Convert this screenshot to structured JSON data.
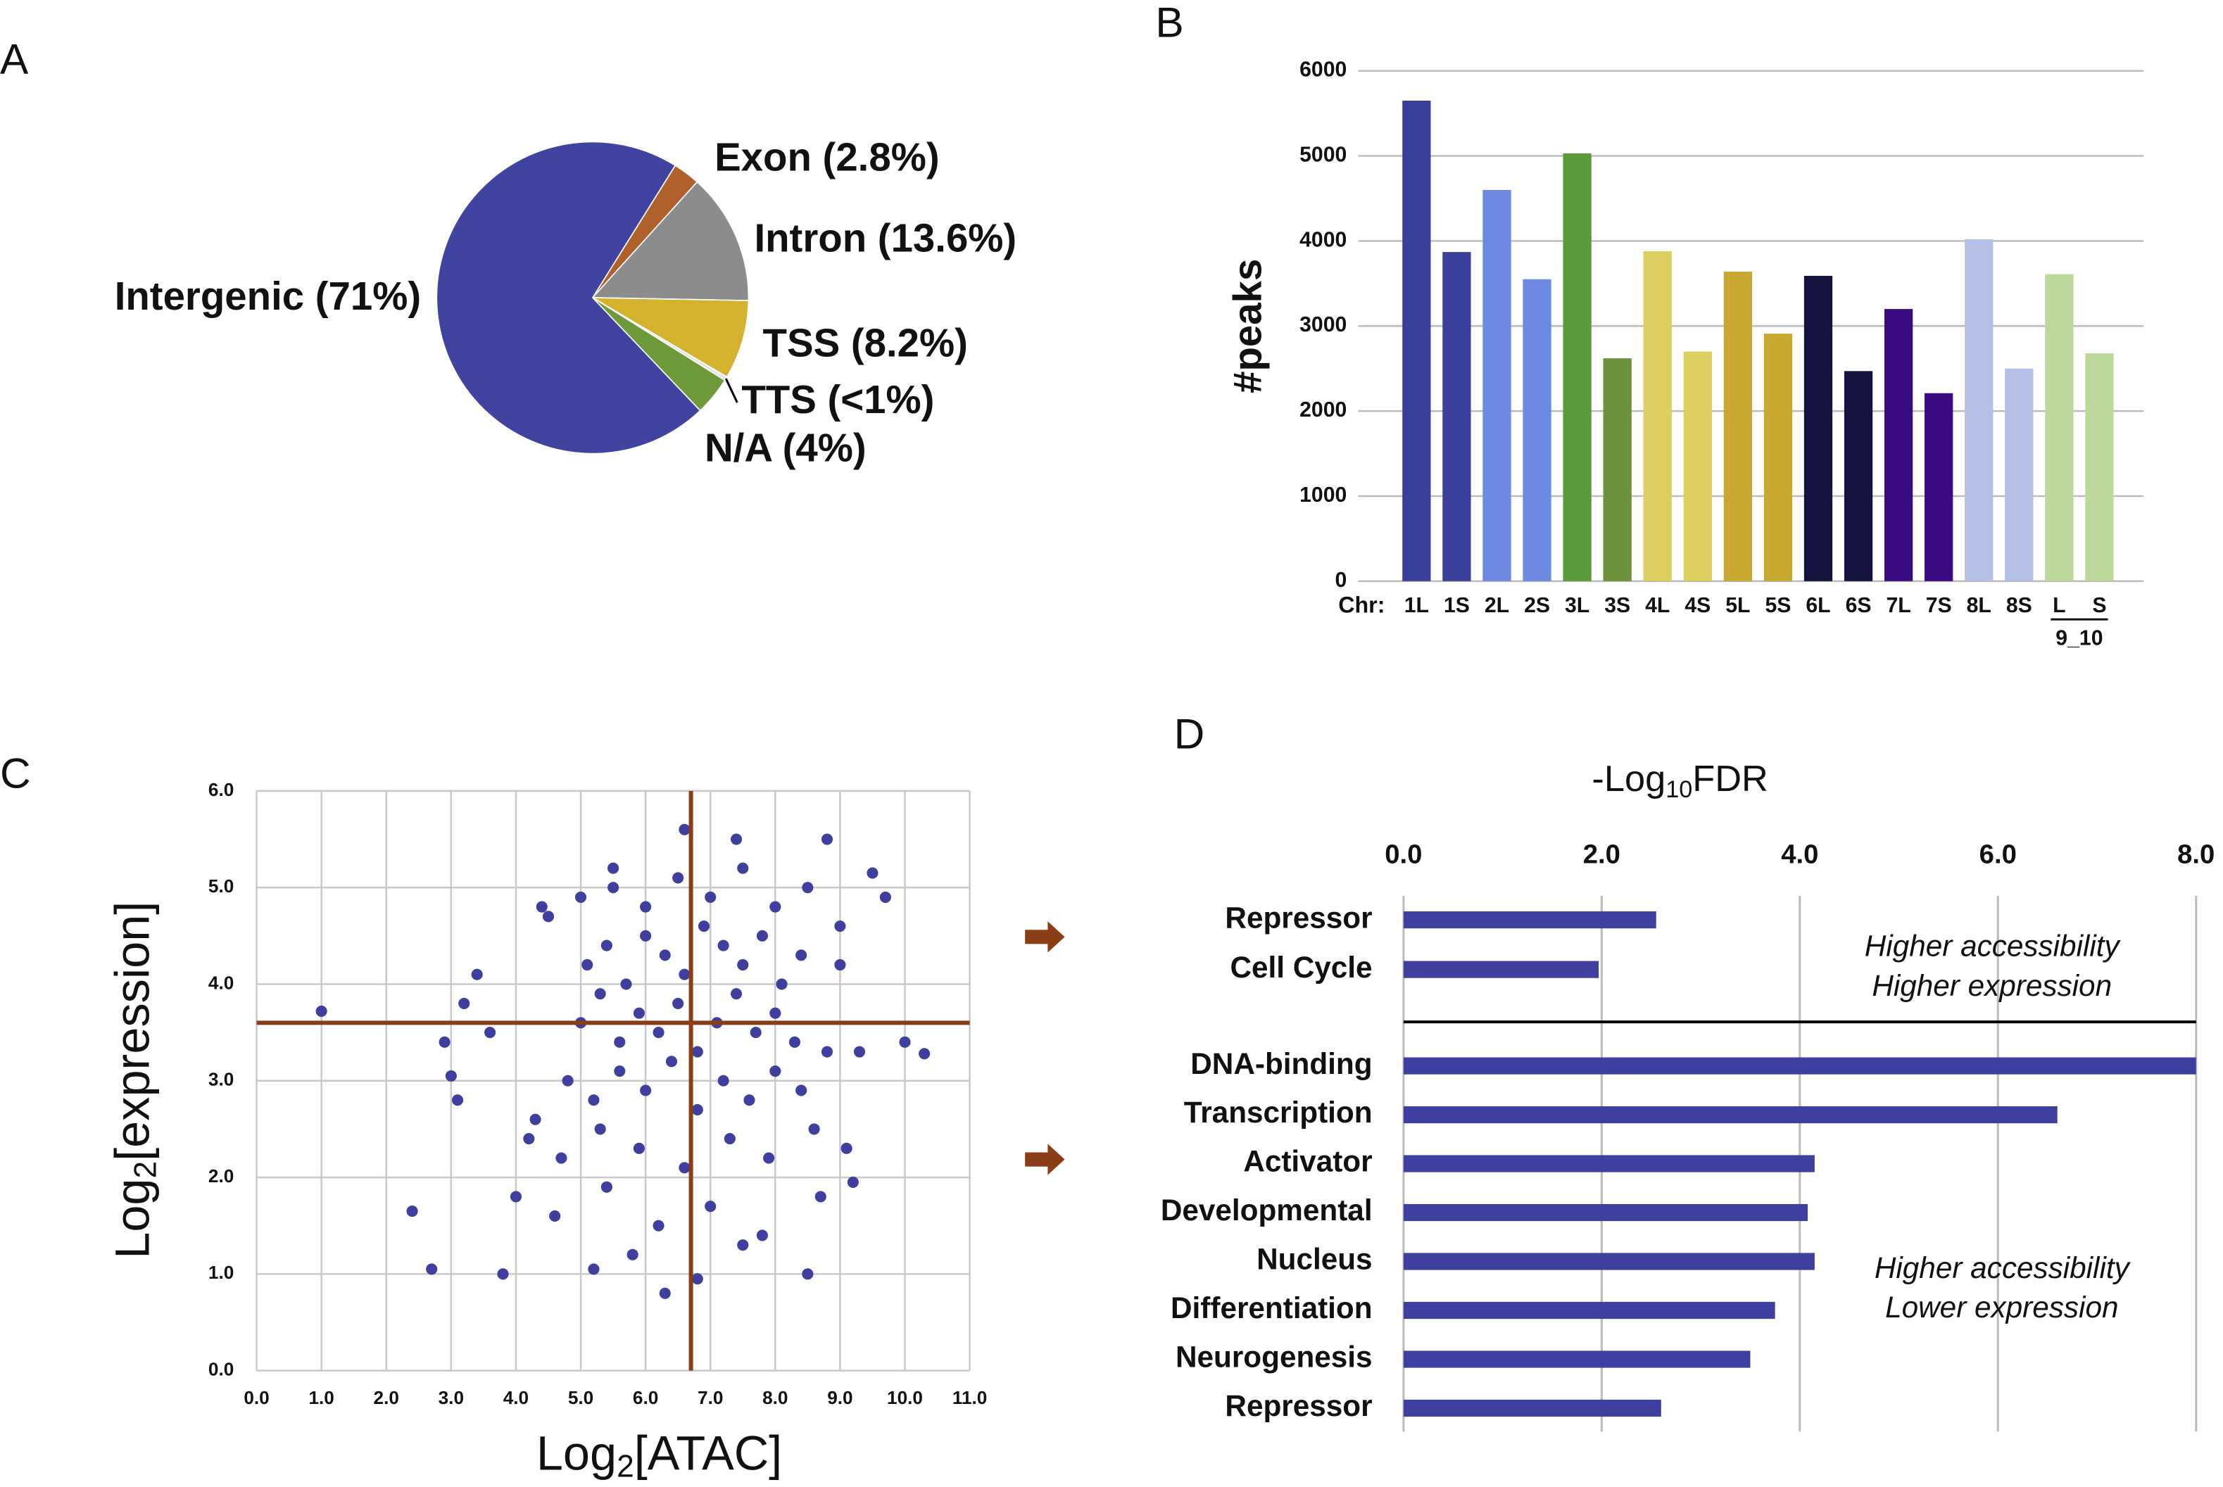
{
  "chart_data": [
    {
      "type": "pie",
      "panel": "A",
      "categories": [
        "Exon (2.8%)",
        "Intron (13.6%)",
        "TSS (8.2%)",
        "TTS (<1%)",
        "N/A (4%)",
        "Intergenic (71%)"
      ],
      "values": [
        2.8,
        13.6,
        8.2,
        0.4,
        4,
        71
      ],
      "colors": [
        "#b0602a",
        "#8c8c8c",
        "#d4b22e",
        "#e6e6e6",
        "#6f9a3a",
        "#4044a0"
      ]
    },
    {
      "type": "bar",
      "panel": "B",
      "y_label": "#peaks",
      "x_prefix": "Chr:",
      "group_label": "9_10",
      "categories": [
        "1L",
        "1S",
        "2L",
        "2S",
        "3L",
        "3S",
        "4L",
        "4S",
        "5L",
        "5S",
        "6L",
        "6S",
        "7L",
        "7S",
        "8L",
        "8S",
        "L",
        "S"
      ],
      "values": [
        5650,
        3870,
        4600,
        3550,
        5030,
        2620,
        3880,
        2700,
        3640,
        2910,
        3590,
        2470,
        3200,
        2210,
        4020,
        2500,
        3610,
        2680
      ],
      "colors": [
        "#3a3f9a",
        "#3a3f9a",
        "#6b8ae0",
        "#6b8ae0",
        "#5a9a3a",
        "#6b923a",
        "#ddd060",
        "#ddd060",
        "#c8a830",
        "#c8a830",
        "#14123f",
        "#14123f",
        "#3a0a80",
        "#3a0a80",
        "#b4c0e6",
        "#b4c0e6",
        "#bcd89a",
        "#bcd89a"
      ],
      "ylim": [
        0,
        6000
      ],
      "yticks": [
        0,
        1000,
        2000,
        3000,
        4000,
        5000,
        6000
      ],
      "grid": true
    },
    {
      "type": "scatter",
      "panel": "C",
      "x_label": [
        "Log",
        "2",
        "[ATAC]"
      ],
      "y_label": [
        "Log",
        "2",
        "[expression]"
      ],
      "color": "#3f3fa0",
      "vline": 6.7,
      "hline": 3.6,
      "line_color": "#8b3e16",
      "x": [
        1.0,
        2.4,
        2.7,
        3.8,
        10.3,
        10.0,
        9.7,
        9.5,
        6.6,
        6.3,
        9.2,
        9.3,
        3.0,
        2.9,
        3.2,
        3.4,
        3.1,
        9.1,
        8.8,
        7.4,
        5.5,
        4.4,
        5.2,
        6.8,
        8.5,
        5.0,
        5.3,
        5.6,
        5.9,
        6.2,
        6.5,
        6.8,
        7.1,
        7.4,
        7.7,
        8.0,
        8.3,
        5.1,
        5.4,
        5.7,
        6.0,
        6.3,
        6.6,
        6.9,
        7.2,
        7.5,
        7.8,
        8.1,
        8.4,
        4.8,
        5.2,
        5.6,
        6.0,
        6.4,
        6.8,
        7.2,
        7.6,
        8.0,
        8.4,
        8.8,
        4.5,
        5.0,
        5.5,
        6.0,
        6.5,
        7.0,
        7.5,
        8.0,
        8.5,
        9.0,
        4.2,
        4.7,
        5.3,
        5.9,
        6.6,
        7.3,
        7.9,
        8.6,
        4.0,
        4.6,
        5.4,
        6.2,
        7.0,
        7.8,
        8.7,
        3.6,
        4.3,
        5.8,
        7.5,
        9.0
      ],
      "y": [
        3.72,
        1.65,
        1.05,
        1.0,
        3.28,
        3.4,
        4.9,
        5.15,
        5.6,
        0.8,
        1.95,
        3.3,
        3.05,
        3.4,
        3.8,
        4.1,
        2.8,
        2.3,
        5.5,
        5.5,
        5.2,
        4.8,
        1.05,
        0.95,
        1.0,
        3.6,
        3.9,
        3.4,
        3.7,
        3.5,
        3.8,
        3.3,
        3.6,
        3.9,
        3.5,
        3.7,
        3.4,
        4.2,
        4.4,
        4.0,
        4.5,
        4.3,
        4.1,
        4.6,
        4.4,
        4.2,
        4.5,
        4.0,
        4.3,
        3.0,
        2.8,
        3.1,
        2.9,
        3.2,
        2.7,
        3.0,
        2.8,
        3.1,
        2.9,
        3.3,
        4.7,
        4.9,
        5.0,
        4.8,
        5.1,
        4.9,
        5.2,
        4.8,
        5.0,
        4.6,
        2.4,
        2.2,
        2.5,
        2.3,
        2.1,
        2.4,
        2.2,
        2.5,
        1.8,
        1.6,
        1.9,
        1.5,
        1.7,
        1.4,
        1.8,
        3.5,
        2.6,
        1.2,
        1.3,
        4.2
      ],
      "xlim": [
        0,
        11
      ],
      "ylim": [
        0,
        6
      ],
      "xticks": [
        {
          "value": 0,
          "label": "0.0"
        },
        {
          "value": 1,
          "label": "1.0"
        },
        {
          "value": 2,
          "label": "2.0"
        },
        {
          "value": 3,
          "label": "3.0"
        },
        {
          "value": 4,
          "label": "4.0"
        },
        {
          "value": 5,
          "label": "5.0"
        },
        {
          "value": 6,
          "label": "6.0"
        },
        {
          "value": 7,
          "label": "7.0"
        },
        {
          "value": 8,
          "label": "8.0"
        },
        {
          "value": 9,
          "label": "9.0"
        },
        {
          "value": 10,
          "label": "10.0"
        },
        {
          "value": 11,
          "label": "11.0"
        }
      ],
      "yticks": [
        {
          "value": 0,
          "label": "0.0"
        },
        {
          "value": 1,
          "label": "1.0"
        },
        {
          "value": 2,
          "label": "2.0"
        },
        {
          "value": 3,
          "label": "3.0"
        },
        {
          "value": 4,
          "label": "4.0"
        },
        {
          "value": 5,
          "label": "5.0"
        },
        {
          "value": 6,
          "label": "6.0"
        }
      ],
      "grid": true
    },
    {
      "type": "hbar",
      "panel": "D",
      "title": [
        "-Log",
        "10",
        "FDR"
      ],
      "color": "#3f3fa0",
      "categories": [
        "Repressor",
        "Cell Cycle",
        "DNA-binding",
        "Transcription",
        "Activator",
        "Developmental",
        "Nucleus",
        "Differentiation",
        "Neurogenesis",
        "Repressor"
      ],
      "values": [
        2.55,
        1.97,
        8.0,
        6.6,
        4.15,
        4.08,
        4.15,
        3.75,
        3.5,
        2.6
      ],
      "xlim": [
        0,
        8
      ],
      "xticks": [
        {
          "value": 0,
          "label": "0.0"
        },
        {
          "value": 2,
          "label": "2.0"
        },
        {
          "value": 4,
          "label": "4.0"
        },
        {
          "value": 6,
          "label": "6.0"
        },
        {
          "value": 8,
          "label": "8.0"
        }
      ],
      "grid": true,
      "annotations": [
        [
          "Higher accessibility",
          "Higher expression"
        ],
        [
          "Higher accessibility",
          "Lower expression"
        ]
      ]
    }
  ]
}
